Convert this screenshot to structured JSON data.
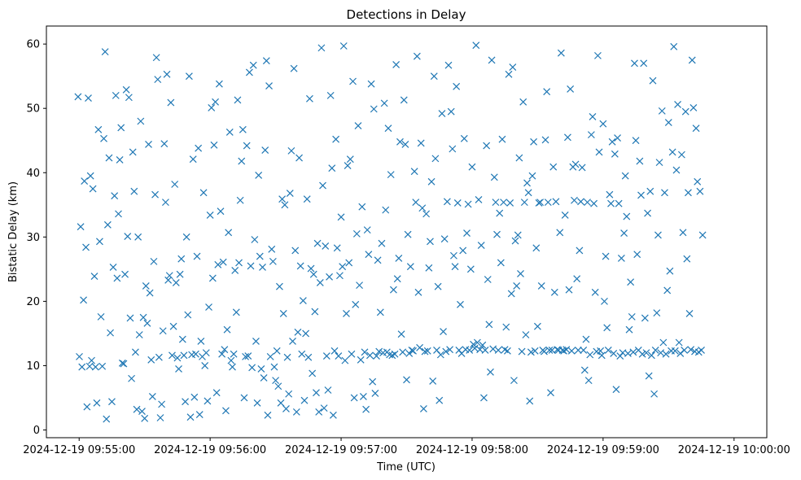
{
  "chart_data": {
    "type": "scatter",
    "title": "Detections in Delay",
    "xlabel": "Time (UTC)",
    "ylabel": "Bistatic Delay (km)",
    "xlim_seconds": [
      -15,
      315
    ],
    "ylim": [
      -1.2,
      62.8
    ],
    "x_ticks": [
      {
        "t": 0,
        "label": "2024-12-19 09:55:00"
      },
      {
        "t": 60,
        "label": "2024-12-19 09:56:00"
      },
      {
        "t": 120,
        "label": "2024-12-19 09:57:00"
      },
      {
        "t": 180,
        "label": "2024-12-19 09:58:00"
      },
      {
        "t": 240,
        "label": "2024-12-19 09:59:00"
      },
      {
        "t": 300,
        "label": "2024-12-19 10:00:00"
      }
    ],
    "y_ticks": [
      0,
      10,
      20,
      30,
      40,
      50,
      60
    ],
    "marker": "x",
    "color": "#1f77b4",
    "series": [
      {
        "name": "Detections",
        "x_seconds_after_095500": [
          -0.5,
          0.1,
          0.7,
          1.3,
          2.0,
          2.4,
          3.1,
          3.6,
          4.2,
          4.8,
          5.2,
          5.7,
          6.3,
          7.0,
          7.5,
          8.1,
          8.8,
          9.4,
          10.0,
          10.6,
          11.3,
          11.9,
          12.5,
          13.1,
          13.7,
          14.3,
          15.0,
          15.6,
          16.2,
          16.8,
          17.4,
          18.0,
          18.6,
          19.2,
          19.8,
          20.4,
          21.0,
          21.6,
          22.2,
          22.8,
          23.4,
          24.0,
          24.6,
          25.2,
          25.8,
          26.4,
          27.0,
          27.6,
          28.2,
          28.8,
          29.4,
          30.0,
          30.6,
          31.2,
          31.8,
          32.4,
          33.0,
          33.6,
          34.2,
          34.8,
          35.4,
          36.0,
          36.6,
          37.2,
          37.8,
          38.4,
          39.0,
          39.6,
          40.2,
          40.8,
          41.4,
          42.0,
          42.6,
          43.2,
          43.8,
          44.4,
          45.0,
          45.6,
          46.2,
          46.8,
          47.4,
          48.0,
          48.6,
          49.2,
          49.8,
          50.4,
          51.0,
          51.6,
          52.2,
          52.8,
          53.4,
          54.0,
          54.6,
          55.2,
          55.8,
          56.4,
          57.0,
          57.6,
          58.2,
          58.8,
          59.4,
          60.0,
          60.6,
          61.2,
          61.8,
          62.4,
          63.0,
          63.6,
          64.2,
          64.8,
          65.4,
          66.0,
          66.6,
          67.2,
          67.8,
          68.4,
          69.0,
          69.6,
          70.2,
          70.8,
          71.4,
          72.0,
          72.6,
          73.2,
          73.8,
          74.4,
          75.0,
          75.6,
          76.2,
          76.8,
          77.4,
          78.0,
          78.6,
          79.2,
          79.8,
          80.4,
          81.0,
          81.6,
          82.2,
          82.8,
          83.4,
          84.0,
          84.6,
          85.2,
          85.8,
          86.4,
          87.0,
          87.6,
          88.2,
          88.8,
          89.4,
          90.0,
          90.6,
          91.2,
          91.8,
          92.4,
          93.0,
          93.6,
          94.2,
          94.8,
          95.4,
          96.0,
          96.6,
          97.2,
          97.8,
          98.4,
          99.0,
          99.6,
          100.2,
          100.8,
          101.4,
          102.0,
          102.6,
          103.2,
          103.8,
          104.4,
          105.0,
          105.6,
          106.2,
          106.8,
          107.4,
          108.0,
          108.6,
          109.2,
          109.8,
          110.4,
          111.0,
          111.6,
          112.2,
          112.8,
          113.4,
          114.0,
          114.6,
          115.2,
          115.8,
          116.4,
          117.0,
          117.6,
          118.2,
          118.8,
          119.4,
          120.0,
          120.6,
          121.2,
          121.8,
          122.4,
          123.0,
          123.6,
          124.2,
          124.8,
          125.4,
          126.0,
          126.6,
          127.2,
          127.8,
          128.4,
          129.0,
          129.6,
          130.2,
          130.8,
          131.4,
          132.0,
          132.6,
          133.2,
          133.8,
          134.4,
          135.0,
          135.6,
          136.2,
          136.8,
          137.4,
          138.0,
          138.6,
          139.2,
          139.8,
          140.4,
          141.0,
          141.6,
          142.2,
          142.8,
          143.4,
          144.0,
          144.6,
          145.2,
          145.8,
          146.4,
          147.0,
          147.6,
          148.2,
          148.8,
          149.4,
          150.0,
          150.6,
          151.2,
          151.8,
          152.4,
          153.0,
          153.6,
          154.2,
          154.8,
          155.4,
          156.0,
          156.6,
          157.2,
          157.8,
          158.4,
          159.0,
          159.6,
          160.2,
          160.8,
          161.4,
          162.0,
          162.6,
          163.2,
          163.8,
          164.4,
          165.0,
          165.6,
          166.2,
          166.8,
          167.4,
          168.0,
          168.6,
          169.2,
          169.8,
          170.4,
          171.0,
          171.6,
          172.2,
          172.8,
          173.4,
          174.0,
          174.6,
          175.2,
          175.8,
          176.4,
          177.0,
          177.6,
          178.2,
          178.8,
          179.4,
          180.0,
          180.6,
          181.2,
          181.8,
          182.4,
          183.0,
          183.6,
          184.2,
          184.8,
          185.4,
          186.0,
          186.6,
          187.2,
          187.8,
          188.4,
          189.0,
          189.6,
          190.2,
          190.8,
          191.4,
          192.0,
          192.6,
          193.2,
          193.8,
          194.4,
          195.0,
          195.6,
          196.2,
          196.8,
          197.4,
          198.0,
          198.6,
          199.2,
          199.8,
          200.4,
          201.0,
          201.6,
          202.2,
          202.8,
          203.4,
          204.0,
          204.6,
          205.2,
          205.8,
          206.4,
          207.0,
          207.6,
          208.2,
          208.8,
          209.4,
          210.0,
          210.6,
          211.2,
          211.8,
          212.4,
          213.0,
          213.6,
          214.2,
          214.8,
          215.4,
          216.0,
          216.6,
          217.2,
          217.8,
          218.4,
          219.0,
          219.6,
          220.2,
          220.8,
          221.4,
          222.0,
          222.6,
          223.2,
          223.8,
          224.4,
          225.0,
          225.6,
          226.2,
          226.8,
          227.4,
          228.0,
          228.6,
          229.2,
          229.8,
          230.4,
          231.0,
          231.6,
          232.2,
          232.8,
          233.4,
          234.0,
          234.6,
          235.2,
          235.8,
          236.4,
          237.0,
          237.6,
          238.2,
          238.8,
          239.4,
          240.0,
          240.6,
          241.2,
          241.8,
          242.4,
          243.0,
          243.6,
          244.2,
          244.8,
          245.4,
          246.0,
          246.6,
          247.2,
          247.8,
          248.4,
          249.0,
          249.6,
          250.2,
          250.8,
          251.4,
          252.0,
          252.6,
          253.2,
          253.8,
          254.4,
          255.0,
          255.6,
          256.2,
          256.8,
          257.4,
          258.0,
          258.6,
          259.2,
          259.8,
          260.4,
          261.0,
          261.6,
          262.2,
          262.8,
          263.4,
          264.0,
          264.6,
          265.2,
          265.8,
          266.4,
          267.0,
          267.6,
          268.2,
          268.8,
          269.4,
          270.0,
          270.6,
          271.2,
          271.8,
          272.4,
          273.0,
          273.6,
          274.2,
          274.8,
          275.4,
          276.0,
          276.6,
          277.2,
          277.8,
          278.4,
          279.0,
          279.6,
          280.2,
          280.8,
          281.4,
          282.0,
          282.6,
          283.2,
          283.8,
          284.4,
          285.0,
          285.6,
          286.2,
          286.8,
          287.4,
          288.0,
          288.6,
          289.2,
          289.8,
          290.4,
          291.0,
          291.6,
          292.2,
          292.8,
          293.4,
          294.0,
          294.6,
          295.2,
          295.8,
          296.4,
          297.0,
          297.6,
          298.2,
          298.8,
          299.4,
          300.0
        ],
        "y_km": [
          51.8,
          11.4,
          31.6,
          9.8,
          20.2,
          38.7,
          28.4,
          3.6,
          51.6,
          9.9,
          39.5,
          10.8,
          37.5,
          23.9,
          9.8,
          4.2,
          46.7,
          29.3,
          17.6,
          9.9,
          45.3,
          58.8,
          1.7,
          31.9,
          42.3,
          15.1,
          4.4,
          25.3,
          36.4,
          52.0,
          23.6,
          33.6,
          42.0,
          47.0,
          10.4,
          10.3,
          24.2,
          52.9,
          30.1,
          51.7,
          17.4,
          8.0,
          43.2,
          37.1,
          12.1,
          3.2,
          30.0,
          14.8,
          48.0,
          2.9,
          17.5,
          1.8,
          22.4,
          16.6,
          44.4,
          21.3,
          10.9,
          5.2,
          26.2,
          36.6,
          57.9,
          54.5,
          11.3,
          1.9,
          4.0,
          15.4,
          44.5,
          35.4,
          55.3,
          23.3,
          24.0,
          50.9,
          11.6,
          16.1,
          38.2,
          22.9,
          11.2,
          9.5,
          24.2,
          26.6,
          14.1,
          11.6,
          4.4,
          30.0,
          17.9,
          55.0,
          2.0,
          11.7,
          42.1,
          5.1,
          11.8,
          27.0,
          43.8,
          2.4,
          13.8,
          11.4,
          36.9,
          10.0,
          12.0,
          4.5,
          19.1,
          33.4,
          50.1,
          23.6,
          44.3,
          51.0,
          5.8,
          25.7,
          53.8,
          34.0,
          11.8,
          26.1,
          12.5,
          3.0,
          15.6,
          30.7,
          46.3,
          10.8,
          9.8,
          11.8,
          24.8,
          18.3,
          51.3,
          26.0,
          35.7,
          41.8,
          46.7,
          5.0,
          11.4,
          44.2,
          11.5,
          55.6,
          25.5,
          9.7,
          56.7,
          29.6,
          13.8,
          4.2,
          39.6,
          27.0,
          9.5,
          25.3,
          8.1,
          43.5,
          57.4,
          2.3,
          53.5,
          11.4,
          28.1,
          26.2,
          9.8,
          7.7,
          12.3,
          6.8,
          22.3,
          4.2,
          35.9,
          18.1,
          35.0,
          3.3,
          11.3,
          5.6,
          36.8,
          43.4,
          13.8,
          56.2,
          27.9,
          2.8,
          15.2,
          42.3,
          25.5,
          11.8,
          20.1,
          4.6,
          15.0,
          35.9,
          11.3,
          51.5,
          25.1,
          8.8,
          24.2,
          18.4,
          5.8,
          29.0,
          2.8,
          22.9,
          59.4,
          38.0,
          3.4,
          28.6,
          11.5,
          6.2,
          23.8,
          52.0,
          40.7,
          2.3,
          12.3,
          45.2,
          28.3,
          11.5,
          24.0,
          33.1,
          25.4,
          59.7,
          10.8,
          18.1,
          41.1,
          26.0,
          42.1,
          11.8,
          54.2,
          5.0,
          19.5,
          30.5,
          47.3,
          22.5,
          10.9,
          34.7,
          5.2,
          12.1,
          3.2,
          31.1,
          27.3,
          11.6,
          53.8,
          7.5,
          49.9,
          5.7,
          11.5,
          26.4,
          12.2,
          18.3,
          29.0,
          12.0,
          50.8,
          34.2,
          12.1,
          46.9,
          11.7,
          39.7,
          11.6,
          21.8,
          11.8,
          56.8,
          23.5,
          26.7,
          44.8,
          14.9,
          12.1,
          51.3,
          44.4,
          7.8,
          30.4,
          11.9,
          25.4,
          12.4,
          12.3,
          40.2,
          35.4,
          58.1,
          21.4,
          12.8,
          44.6,
          34.5,
          3.3,
          12.2,
          33.6,
          12.3,
          25.2,
          29.3,
          38.6,
          7.6,
          55.0,
          42.2,
          12.4,
          22.3,
          4.6,
          11.7,
          49.2,
          15.3,
          29.7,
          12.2,
          35.5,
          56.7,
          12.5,
          49.5,
          43.7,
          27.1,
          25.4,
          53.4,
          35.3,
          12.4,
          19.5,
          11.9,
          27.9,
          45.3,
          12.5,
          30.6,
          35.1,
          12.4,
          25.0,
          40.9,
          13.3,
          12.7,
          59.8,
          13.6,
          35.8,
          12.5,
          28.7,
          13.2,
          5.0,
          12.4,
          44.2,
          23.4,
          16.4,
          9.0,
          57.5,
          12.6,
          39.3,
          35.4,
          30.4,
          12.4,
          33.7,
          26.0,
          45.2,
          35.4,
          12.5,
          16.0,
          12.3,
          55.3,
          35.3,
          21.2,
          56.4,
          7.7,
          29.4,
          22.4,
          30.3,
          42.3,
          24.3,
          12.2,
          51.0,
          35.4,
          14.8,
          38.4,
          36.9,
          4.5,
          12.1,
          39.5,
          44.8,
          12.3,
          28.3,
          16.1,
          35.3,
          35.4,
          22.4,
          12.4,
          12.2,
          45.1,
          52.6,
          35.4,
          12.4,
          5.8,
          12.4,
          40.9,
          21.4,
          35.5,
          12.5,
          12.4,
          30.7,
          58.6,
          12.4,
          12.3,
          33.4,
          12.5,
          45.5,
          21.8,
          53.0,
          12.3,
          40.9,
          35.7,
          41.3,
          23.5,
          12.4,
          27.9,
          35.5,
          40.8,
          12.4,
          9.3,
          14.1,
          35.4,
          7.7,
          11.7,
          45.9,
          48.7,
          35.2,
          21.4,
          12.2,
          58.2,
          43.2,
          12.3,
          11.6,
          47.6,
          20.0,
          27.0,
          15.9,
          12.4,
          36.6,
          35.2,
          44.8,
          11.9,
          42.9,
          6.3,
          45.4,
          35.2,
          11.5,
          26.7,
          12.0,
          30.6,
          39.5,
          33.2,
          11.9,
          15.6,
          23.0,
          17.6,
          12.1,
          57.0,
          45.0,
          27.3,
          12.4,
          41.8,
          36.5,
          11.8,
          57.0,
          17.4,
          12.0,
          33.7,
          8.4,
          37.1,
          11.6,
          54.3,
          5.6,
          12.4,
          18.2,
          30.3,
          41.6,
          12.0,
          49.6,
          13.6,
          36.9,
          11.8,
          21.7,
          47.8,
          24.7,
          12.3,
          43.2,
          59.6,
          12.3,
          40.4,
          50.6,
          13.6,
          11.9,
          42.8,
          30.7,
          12.4,
          49.5,
          26.6,
          36.9,
          18.1,
          12.5,
          57.5,
          50.1,
          12.2,
          46.9,
          38.6,
          12.1,
          37.1,
          12.4,
          30.3
        ]
      }
    ]
  }
}
